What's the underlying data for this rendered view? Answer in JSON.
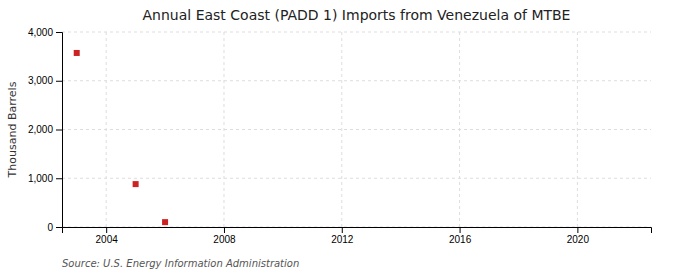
{
  "chart_data": {
    "type": "scatter",
    "title": "Annual East Coast (PADD 1) Imports from Venezuela of MTBE",
    "ylabel": "Thousand Barrels",
    "source": "Source: U.S. Energy Information Administration",
    "x": [
      2003,
      2005,
      2006
    ],
    "values": [
      3570,
      880,
      100
    ],
    "color": "#cc2222",
    "marker": "square",
    "xlim": [
      2002.5,
      2022.5
    ],
    "xticks": [
      2004,
      2008,
      2012,
      2016,
      2020
    ],
    "ylim": [
      0,
      4000
    ],
    "yticks": [
      0,
      {
        "value": 1000,
        "label": "1,000"
      },
      {
        "value": 2000,
        "label": "2,000"
      },
      {
        "value": 3000,
        "label": "3,000"
      },
      {
        "value": 4000,
        "label": "4,000"
      }
    ],
    "grid": true
  }
}
